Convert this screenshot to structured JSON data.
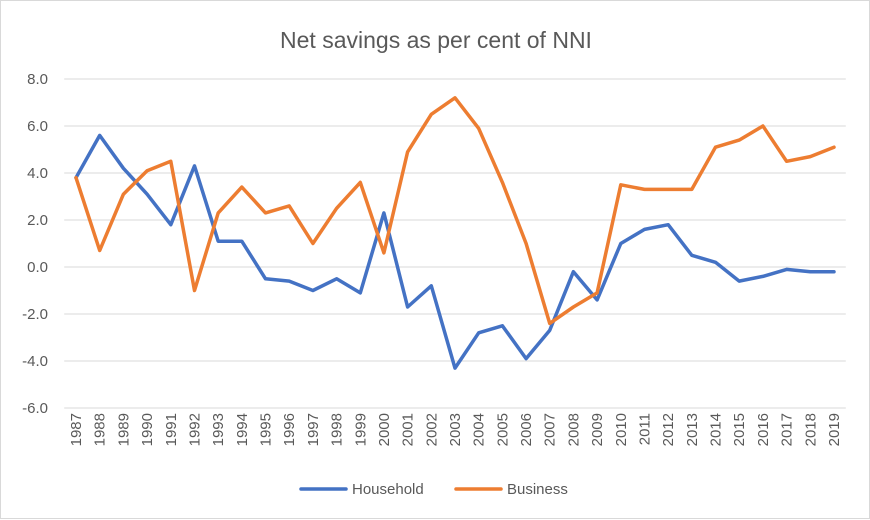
{
  "chart_data": {
    "type": "line",
    "title": "Net savings as per cent of NNI",
    "xlabel": "",
    "ylabel": "",
    "ylim": [
      -6,
      8
    ],
    "yticks": [
      8,
      6,
      4,
      2,
      0,
      -2,
      -4,
      -6
    ],
    "ytick_labels": [
      "8.0",
      "6.0",
      "4.0",
      "2.0",
      "0.0",
      "-2.0",
      "-4.0",
      "-6.0"
    ],
    "grid": true,
    "legend_position": "bottom",
    "categories": [
      "1987",
      "1988",
      "1989",
      "1990",
      "1991",
      "1992",
      "1993",
      "1994",
      "1995",
      "1996",
      "1997",
      "1998",
      "1999",
      "2000",
      "2001",
      "2002",
      "2003",
      "2004",
      "2005",
      "2006",
      "2007",
      "2008",
      "2009",
      "2010",
      "2011",
      "2012",
      "2013",
      "2014",
      "2015",
      "2016",
      "2017",
      "2018",
      "2019"
    ],
    "series": [
      {
        "name": "Household",
        "color": "#4472c4",
        "values": [
          3.8,
          5.6,
          4.2,
          3.1,
          1.8,
          4.3,
          1.1,
          1.1,
          -0.5,
          -0.6,
          -1.0,
          -0.5,
          -1.1,
          2.3,
          -1.7,
          -0.8,
          -4.3,
          -2.8,
          -2.5,
          -3.9,
          -2.7,
          -0.2,
          -1.4,
          1.0,
          1.6,
          1.8,
          0.5,
          0.2,
          -0.6,
          -0.4,
          -0.1,
          -0.2,
          -0.2
        ]
      },
      {
        "name": "Business",
        "color": "#ed7d31",
        "values": [
          3.8,
          0.7,
          3.1,
          4.1,
          4.5,
          -1.0,
          2.3,
          3.4,
          2.3,
          2.6,
          1.0,
          2.5,
          3.6,
          0.6,
          4.9,
          6.5,
          7.2,
          5.9,
          3.6,
          1.0,
          -2.4,
          -1.7,
          -1.1,
          3.5,
          3.3,
          3.3,
          3.3,
          5.1,
          5.4,
          6.0,
          4.5,
          4.7,
          5.1
        ]
      }
    ]
  }
}
